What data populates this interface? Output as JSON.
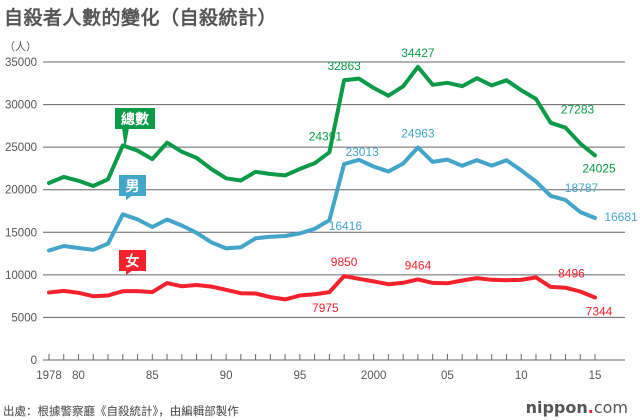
{
  "title": "自殺者人數的變化（自殺統計）",
  "source": "出處：根據警察廳《自殺統計》，由編輯部製作",
  "logo": {
    "text": "nippon",
    "dot": ".",
    "suffix": "com"
  },
  "chart_data": {
    "type": "line",
    "title": "自殺者人數的變化（自殺統計）",
    "ylabel": "（人）",
    "ylim": [
      0,
      35000
    ],
    "yticks": [
      0,
      5000,
      10000,
      15000,
      20000,
      25000,
      30000,
      35000
    ],
    "xlim": [
      1978,
      2015
    ],
    "xtick_labels": [
      {
        "year": 1978,
        "label": "1978"
      },
      {
        "year": 1980,
        "label": "80"
      },
      {
        "year": 1985,
        "label": "85"
      },
      {
        "year": 1990,
        "label": "90"
      },
      {
        "year": 1995,
        "label": "95"
      },
      {
        "year": 2000,
        "label": "2000"
      },
      {
        "year": 2005,
        "label": "05"
      },
      {
        "year": 2010,
        "label": "10"
      },
      {
        "year": 2015,
        "label": "15"
      }
    ],
    "grid": true,
    "x": [
      1978,
      1979,
      1980,
      1981,
      1982,
      1983,
      1984,
      1985,
      1986,
      1987,
      1988,
      1989,
      1990,
      1991,
      1992,
      1993,
      1994,
      1995,
      1996,
      1997,
      1998,
      1999,
      2000,
      2001,
      2002,
      2003,
      2004,
      2005,
      2006,
      2007,
      2008,
      2009,
      2010,
      2011,
      2012,
      2013,
      2014,
      2015
    ],
    "series": [
      {
        "name": "總數",
        "color": "#0a9a48",
        "values": [
          20788,
          21503,
          21048,
          20434,
          21228,
          25202,
          24596,
          23599,
          25524,
          24460,
          23742,
          22436,
          21346,
          21084,
          22104,
          21851,
          21679,
          22445,
          23104,
          24391,
          32863,
          33048,
          31957,
          31042,
          32143,
          34427,
          32325,
          32552,
          32155,
          33093,
          32249,
          32845,
          31690,
          30651,
          27858,
          27283,
          25427,
          24025
        ],
        "labels": [
          {
            "year": 1997,
            "text": "24391"
          },
          {
            "year": 1998,
            "text": "32863"
          },
          {
            "year": 2003,
            "text": "34427"
          },
          {
            "year": 2013,
            "text": "27283"
          },
          {
            "year": 2015,
            "text": "24025"
          }
        ]
      },
      {
        "name": "男",
        "color": "#43a5c9",
        "values": [
          12859,
          13386,
          13155,
          12942,
          13654,
          17116,
          16508,
          15624,
          16497,
          15802,
          14934,
          13818,
          13102,
          13242,
          14296,
          14468,
          14560,
          14874,
          15393,
          16416,
          23013,
          23512,
          22727,
          22144,
          23080,
          24963,
          23272,
          23540,
          22813,
          23478,
          22831,
          23472,
          22283,
          20955,
          19273,
          18787,
          17386,
          16681
        ],
        "labels": [
          {
            "year": 1997,
            "text": "16416"
          },
          {
            "year": 1998,
            "text": "23013"
          },
          {
            "year": 2003,
            "text": "24963"
          },
          {
            "year": 2013,
            "text": "18787"
          },
          {
            "year": 2015,
            "text": "16681"
          }
        ]
      },
      {
        "name": "女",
        "color": "#f5222d",
        "values": [
          7929,
          8117,
          7893,
          7492,
          7574,
          8086,
          8088,
          7975,
          9027,
          8658,
          8808,
          8618,
          8244,
          7842,
          7808,
          7383,
          7119,
          7571,
          7711,
          7975,
          9850,
          9536,
          9230,
          8898,
          9063,
          9464,
          9053,
          9012,
          9342,
          9615,
          9418,
          9373,
          9407,
          9696,
          8585,
          8496,
          8041,
          7344
        ],
        "labels": [
          {
            "year": 1997,
            "text": "7975"
          },
          {
            "year": 1998,
            "text": "9850"
          },
          {
            "year": 2003,
            "text": "9464"
          },
          {
            "year": 2013,
            "text": "8496"
          },
          {
            "year": 2015,
            "text": "7344"
          }
        ]
      }
    ]
  }
}
